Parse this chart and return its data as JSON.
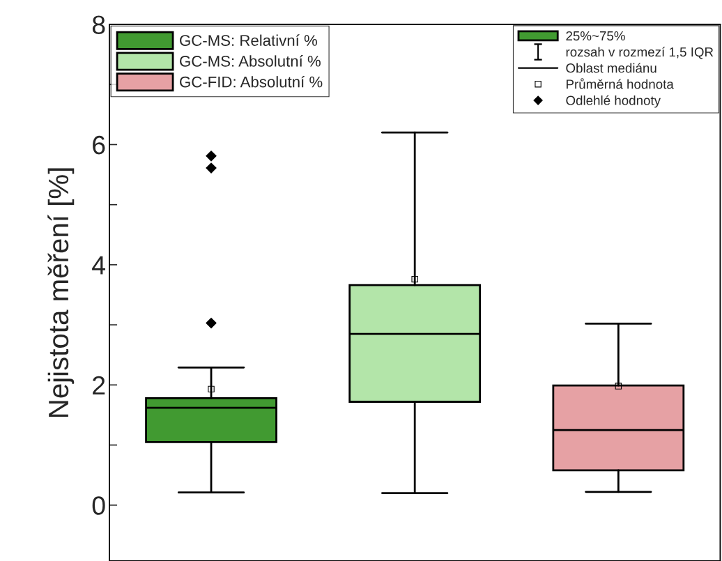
{
  "chart_data": {
    "type": "box",
    "ylabel": "Nejistota měření [%]",
    "categories": [
      null,
      null,
      null
    ],
    "series": [
      {
        "name": "GC-MS: Relativní %",
        "color": "#419a31",
        "boxes": [
          {
            "low": 0.21,
            "q1": 1.05,
            "median": 1.62,
            "q3": 1.78,
            "high": 2.29,
            "mean": 1.93,
            "outliers": [
              5.81,
              5.61,
              3.03
            ]
          },
          null,
          null
        ]
      },
      {
        "name": "GC-MS: Absolutní %",
        "color": "#b3e5a9",
        "boxes": [
          null,
          {
            "low": 0.2,
            "q1": 1.72,
            "median": 2.85,
            "q3": 3.66,
            "high": 6.2,
            "mean": 3.76
          },
          null
        ]
      },
      {
        "name": "GC-FID: Absolutní %",
        "color": "#e6a1a4",
        "boxes": [
          null,
          null,
          {
            "low": 0.22,
            "q1": 0.58,
            "median": 1.25,
            "q3": 1.99,
            "high": 3.02,
            "mean": 1.98
          }
        ]
      }
    ],
    "ylim": [
      -0.93,
      8
    ],
    "yticks": [
      0,
      {
        "value": 1,
        "label": null
      },
      2,
      {
        "value": 3,
        "label": null
      },
      4,
      {
        "value": 5,
        "label": null
      },
      6,
      {
        "value": 7,
        "label": null
      },
      8
    ],
    "annotations": [
      "25%~75%",
      "rozsah v rozmezí 1,5 IQR",
      "Oblast mediánu",
      "Průměrná hodnota",
      "Odlehlé hodnoty"
    ],
    "legend": "top left",
    "tick_labels": "y",
    "grid": false
  }
}
